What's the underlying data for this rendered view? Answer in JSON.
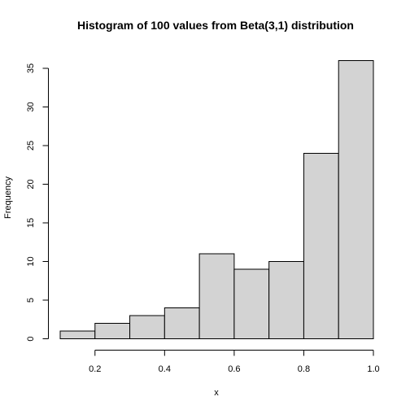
{
  "chart_data": {
    "type": "bar",
    "title": "Histogram of 100 values from Beta(3,1) distribution",
    "xlabel": "x",
    "ylabel": "Frequency",
    "bins": [
      {
        "start": 0.1,
        "end": 0.2,
        "count": 1
      },
      {
        "start": 0.2,
        "end": 0.3,
        "count": 2
      },
      {
        "start": 0.3,
        "end": 0.4,
        "count": 3
      },
      {
        "start": 0.4,
        "end": 0.5,
        "count": 4
      },
      {
        "start": 0.5,
        "end": 0.6,
        "count": 11
      },
      {
        "start": 0.6,
        "end": 0.7,
        "count": 9
      },
      {
        "start": 0.7,
        "end": 0.8,
        "count": 10
      },
      {
        "start": 0.8,
        "end": 0.9,
        "count": 24
      },
      {
        "start": 0.9,
        "end": 1.0,
        "count": 36
      }
    ],
    "xlim": [
      0.1,
      1.0
    ],
    "ylim": [
      0,
      36
    ],
    "x_ticks": [
      "0.2",
      "0.4",
      "0.6",
      "0.8",
      "1.0"
    ],
    "y_ticks": [
      "0",
      "5",
      "10",
      "15",
      "20",
      "25",
      "30",
      "35"
    ],
    "bar_fill": "#d3d3d3",
    "bar_stroke": "#000000",
    "grid": false
  }
}
